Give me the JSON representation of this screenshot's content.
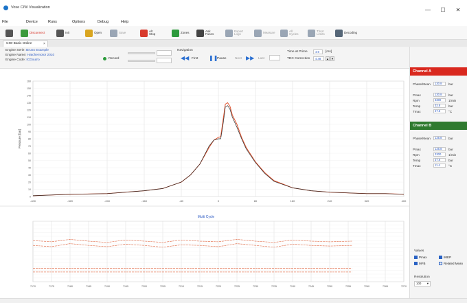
{
  "window": {
    "title": "Vose CIW Visualization",
    "icon": "app-logo-icon",
    "controls": {
      "minimize": "—",
      "maximize": "☐",
      "close": "✕"
    }
  },
  "menu": [
    "File",
    "Device",
    "Runs",
    "Options",
    "Debug",
    "Help"
  ],
  "toolbar": [
    {
      "label": "",
      "icon": "monitor-icon",
      "color": "#555555",
      "enabled": true
    },
    {
      "label": "Disconnect",
      "icon": "phone-device-icon",
      "color": "#3c9a3c",
      "enabled": true,
      "red": true
    },
    {
      "label": "Init",
      "icon": "device-init-icon",
      "color": "#555555",
      "enabled": true
    },
    {
      "label": "Open",
      "icon": "folder-open-icon",
      "color": "#d9a520",
      "enabled": true
    },
    {
      "label": "Save",
      "icon": "save-icon",
      "color": "#9aa6b5",
      "enabled": false
    },
    {
      "label": "Alt\nStop",
      "icon": "stop-icon",
      "color": "#d83a2c",
      "enabled": true
    },
    {
      "label": "Zones",
      "icon": "battery-zones-icon",
      "color": "#2c9a3c",
      "enabled": true
    },
    {
      "label": "Ask\nFuses",
      "icon": "camera-icon",
      "color": "#444444",
      "enabled": true
    },
    {
      "label": "Export\nLogs",
      "icon": "export-icon",
      "color": "#9aa6b5",
      "enabled": false
    },
    {
      "label": "Measure",
      "icon": "ruler-icon",
      "color": "#9aa6b5",
      "enabled": false
    },
    {
      "label": "All\nCycles",
      "icon": "cycles-icon",
      "color": "#9aa6b5",
      "enabled": false
    },
    {
      "label": "Throt\nLimits",
      "icon": "limits-icon",
      "color": "#9aa6b5",
      "enabled": false
    },
    {
      "label": "Decoding",
      "icon": "decoding-icon",
      "color": "#556677",
      "enabled": true
    }
  ],
  "tab": {
    "label": "CIW Basic Online",
    "close": "×"
  },
  "info": {
    "lines": [
      {
        "label": "Engine Serie:",
        "value": "Bruno Example"
      },
      {
        "label": "Engine Name:",
        "value": "Hatchemotor 2010"
      },
      {
        "label": "Engine Code:",
        "value": "ICDoutro"
      }
    ],
    "record_label": "Record",
    "navigation_label": "Navigation",
    "nav_first": "First",
    "nav_pause": "Pause",
    "nav_next": "Next",
    "nav_last": "Last",
    "time_label": "Time at Prime",
    "time_value": "4.9",
    "time_unit": "[ms]",
    "tdc_label": "TDC Correction",
    "tdc_value": "4.48"
  },
  "chart_data": [
    {
      "type": "line",
      "title": "",
      "xlabel": "",
      "ylabel": "Pressure [bar]",
      "xlim": [
        -400,
        400
      ],
      "ylim": [
        0,
        160
      ],
      "xticks": [
        "-400",
        "-320",
        "-240",
        "-160",
        "-80",
        "0",
        "80",
        "160",
        "240",
        "320",
        "400"
      ],
      "yticks": [
        "0",
        "10",
        "20",
        "30",
        "40",
        "50",
        "60",
        "70",
        "80",
        "90",
        "100",
        "110",
        "120",
        "130",
        "140",
        "150",
        "160"
      ],
      "grid": true,
      "series": [
        {
          "color": "#e0522e",
          "x": [
            -400,
            -320,
            -240,
            -160,
            -120,
            -80,
            -60,
            -40,
            -20,
            -10,
            0,
            5,
            10,
            15,
            20,
            25,
            30,
            40,
            50,
            60,
            80,
            100,
            120,
            160,
            200,
            240,
            280,
            320,
            360,
            400
          ],
          "y": [
            1,
            3,
            4,
            8,
            11,
            20,
            30,
            45,
            68,
            78,
            82,
            83,
            106,
            128,
            130,
            125,
            113,
            100,
            82,
            68,
            48,
            33,
            22,
            12,
            8,
            6,
            5,
            4,
            4,
            3
          ]
        },
        {
          "color": "#2b2b2b",
          "x": [
            -400,
            -320,
            -240,
            -160,
            -120,
            -80,
            -60,
            -40,
            -20,
            -10,
            0,
            5,
            10,
            15,
            20,
            25,
            30,
            40,
            50,
            60,
            80,
            100,
            120,
            160,
            200,
            240,
            280,
            320,
            360,
            400
          ],
          "y": [
            1,
            3,
            4,
            8,
            11,
            20,
            30,
            45,
            70,
            78,
            80,
            80,
            100,
            124,
            126,
            121,
            110,
            96,
            80,
            66,
            47,
            32,
            21,
            12,
            8,
            6,
            5,
            4,
            4,
            3
          ]
        }
      ]
    },
    {
      "type": "line",
      "title": "Multi Cycle",
      "xlabel": "",
      "ylabel": "",
      "xlim": [
        7170,
        7270
      ],
      "xticks": [
        "7170",
        "7175",
        "7180",
        "7185",
        "7190",
        "7195",
        "7200",
        "7205",
        "7210",
        "7215",
        "7220",
        "7225",
        "7230",
        "7235",
        "7240",
        "7245",
        "7250",
        "7255",
        "7260",
        "7265",
        "7270"
      ],
      "grid": true,
      "series": [
        {
          "color": "#e37a5a",
          "x": [
            7170,
            7180,
            7190,
            7200,
            7210,
            7220,
            7230,
            7240,
            7250,
            7256
          ],
          "y": [
            0.16,
            0.16,
            0.16,
            0.16,
            0.16,
            0.16,
            0.16,
            0.16,
            0.16,
            0.16
          ]
        },
        {
          "color": "#e37a5a",
          "x": [
            7170,
            7180,
            7190,
            7200,
            7210,
            7220,
            7230,
            7240,
            7250,
            7256
          ],
          "y": [
            0.22,
            0.22,
            0.22,
            0.22,
            0.22,
            0.22,
            0.22,
            0.22,
            0.22,
            0.22
          ]
        },
        {
          "color": "#e37a5a",
          "x": [
            7170,
            7175,
            7180,
            7185,
            7190,
            7195,
            7200,
            7205,
            7210,
            7215,
            7220,
            7225,
            7230,
            7235,
            7240,
            7245,
            7250,
            7256
          ],
          "y": [
            0.6,
            0.58,
            0.63,
            0.6,
            0.58,
            0.62,
            0.6,
            0.57,
            0.61,
            0.6,
            0.58,
            0.63,
            0.6,
            0.57,
            0.62,
            0.6,
            0.59,
            0.6
          ]
        },
        {
          "color": "#e37a5a",
          "x": [
            7170,
            7175,
            7180,
            7185,
            7190,
            7195,
            7200,
            7205,
            7210,
            7215,
            7220,
            7225,
            7230,
            7235,
            7240,
            7245,
            7250,
            7256
          ],
          "y": [
            0.68,
            0.66,
            0.7,
            0.67,
            0.65,
            0.69,
            0.67,
            0.65,
            0.69,
            0.67,
            0.66,
            0.7,
            0.67,
            0.65,
            0.69,
            0.67,
            0.66,
            0.67
          ]
        }
      ]
    }
  ],
  "channel_a": {
    "title": "Channel A",
    "color": "#d9281e",
    "rows": [
      {
        "label": "Phase/Mean",
        "value": "130.8",
        "unit": "bar"
      },
      {
        "label": "Pmax",
        "value": "130.8",
        "unit": "bar"
      },
      {
        "label": "Rpm",
        "value": "3300",
        "unit": "1/min"
      },
      {
        "label": "Temp",
        "value": "32.8",
        "unit": "bar"
      },
      {
        "label": "Tmax",
        "value": "27.6",
        "unit": "°C"
      }
    ]
  },
  "channel_b": {
    "title": "Channel B",
    "color": "#2f7a2f",
    "rows": [
      {
        "label": "Phase/Mean",
        "value": "125.8",
        "unit": "bar"
      },
      {
        "label": "Pmax",
        "value": "125.8",
        "unit": "bar"
      },
      {
        "label": "Rpm",
        "value": "3300",
        "unit": "1/min"
      },
      {
        "label": "Temp",
        "value": "37.6",
        "unit": "bar"
      },
      {
        "label": "Tmax",
        "value": "11.4",
        "unit": "°C"
      }
    ]
  },
  "options": {
    "title": "Values",
    "checks": [
      {
        "label": "Pmax",
        "checked": true
      },
      {
        "label": "IMEP",
        "checked": true
      },
      {
        "label": "MFB",
        "checked": true
      },
      {
        "label": "Related Mean",
        "checked": false
      }
    ],
    "resolution_label": "Resolution",
    "resolution_value": "100"
  }
}
